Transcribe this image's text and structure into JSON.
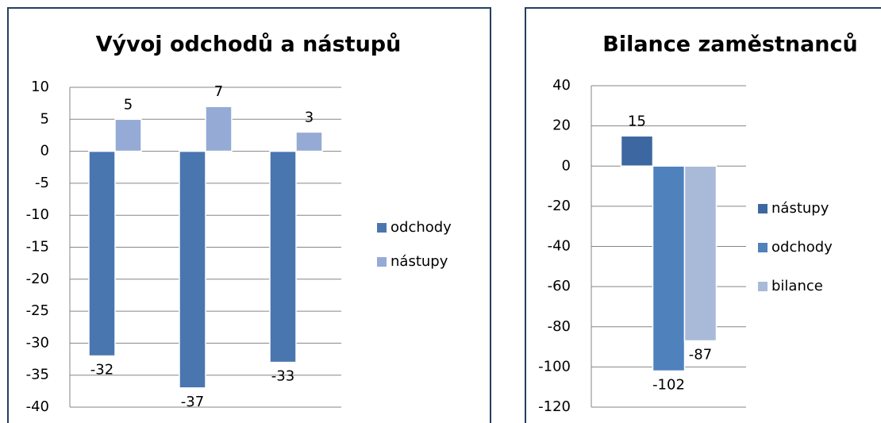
{
  "chart_data": [
    {
      "type": "bar",
      "title": "Vývoj odchodů a nástupů",
      "categories": [
        null,
        null,
        null
      ],
      "series": [
        {
          "name": "odchody",
          "color": "#4a76b0",
          "values": [
            -32,
            -37,
            -33
          ]
        },
        {
          "name": "nástupy",
          "color": "#95abd5",
          "values": [
            5,
            7,
            3
          ]
        }
      ],
      "ylim": [
        -40,
        10
      ],
      "yticks": [
        -40,
        -35,
        -30,
        -25,
        -20,
        -15,
        -10,
        -5,
        0,
        5,
        10
      ],
      "grid": true,
      "legend": "right"
    },
    {
      "type": "bar",
      "title": "Bilance zaměstnanců",
      "categories": [
        null
      ],
      "series": [
        {
          "name": "nástupy",
          "color": "#3d67a0",
          "values": [
            15
          ]
        },
        {
          "name": "odchody",
          "color": "#4f81bd",
          "values": [
            -102
          ]
        },
        {
          "name": "bilance",
          "color": "#a9bad9",
          "values": [
            -87
          ]
        }
      ],
      "ylim": [
        -120,
        40
      ],
      "yticks": [
        -120,
        -100,
        -80,
        -60,
        -40,
        -20,
        0,
        20,
        40
      ],
      "grid": true,
      "legend": "right"
    }
  ]
}
